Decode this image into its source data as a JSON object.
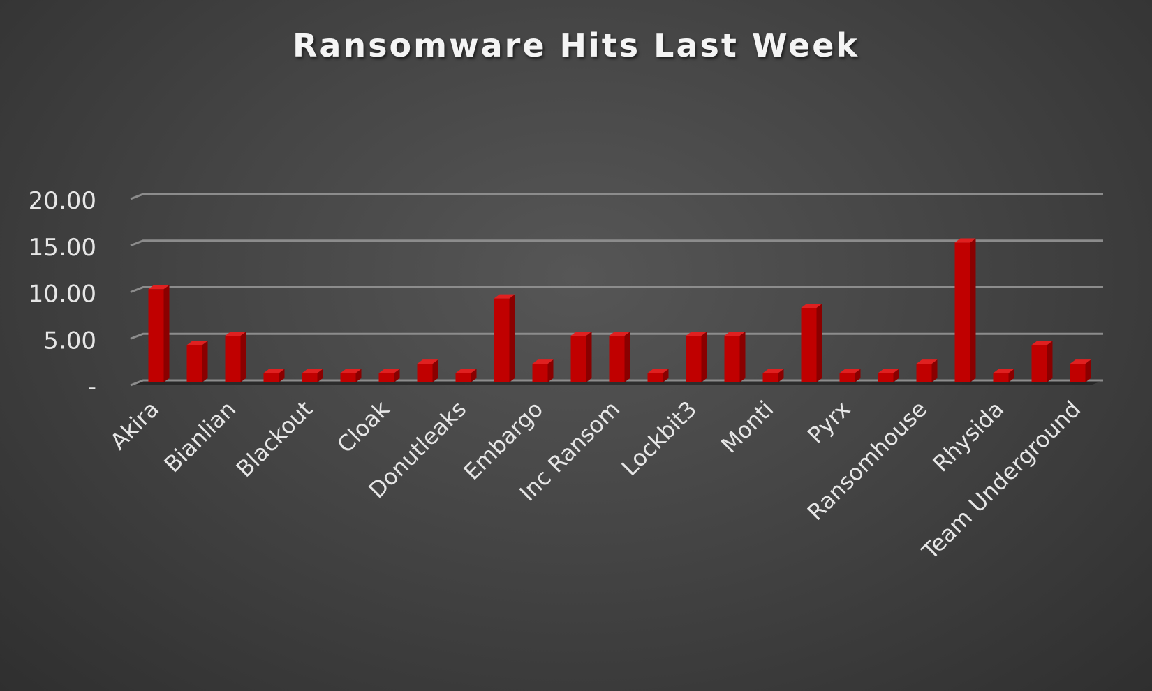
{
  "chart_data": {
    "type": "bar",
    "title": "Ransomware Hits Last Week",
    "xlabel": "",
    "ylabel": "",
    "categories": [
      "Akira",
      "",
      "Bianlian",
      "",
      "Blackout",
      "",
      "Cloak",
      "",
      "Donutleaks",
      "",
      "Embargo",
      "",
      "Inc Ransom",
      "",
      "Lockbit3",
      "",
      "Monti",
      "",
      "Pyrx",
      "",
      "Ransomhouse",
      "",
      "Rhysida",
      "",
      "Team Underground"
    ],
    "values": [
      10,
      4,
      5,
      1,
      1,
      1,
      1,
      2,
      1,
      9,
      2,
      5,
      5,
      1,
      5,
      5,
      1,
      8,
      1,
      1,
      2,
      15,
      1,
      4,
      2
    ],
    "y_ticks": [
      "-",
      "5.00",
      "10.00",
      "15.00",
      "20.00"
    ],
    "ylim": [
      0,
      20
    ],
    "grid": true,
    "legend": "none",
    "colors": {
      "bar": "#c00000",
      "bar_side": "#8a0000",
      "bar_top": "#e02020",
      "grid": "#8c8c8c",
      "text": "#e6e6e6"
    }
  }
}
